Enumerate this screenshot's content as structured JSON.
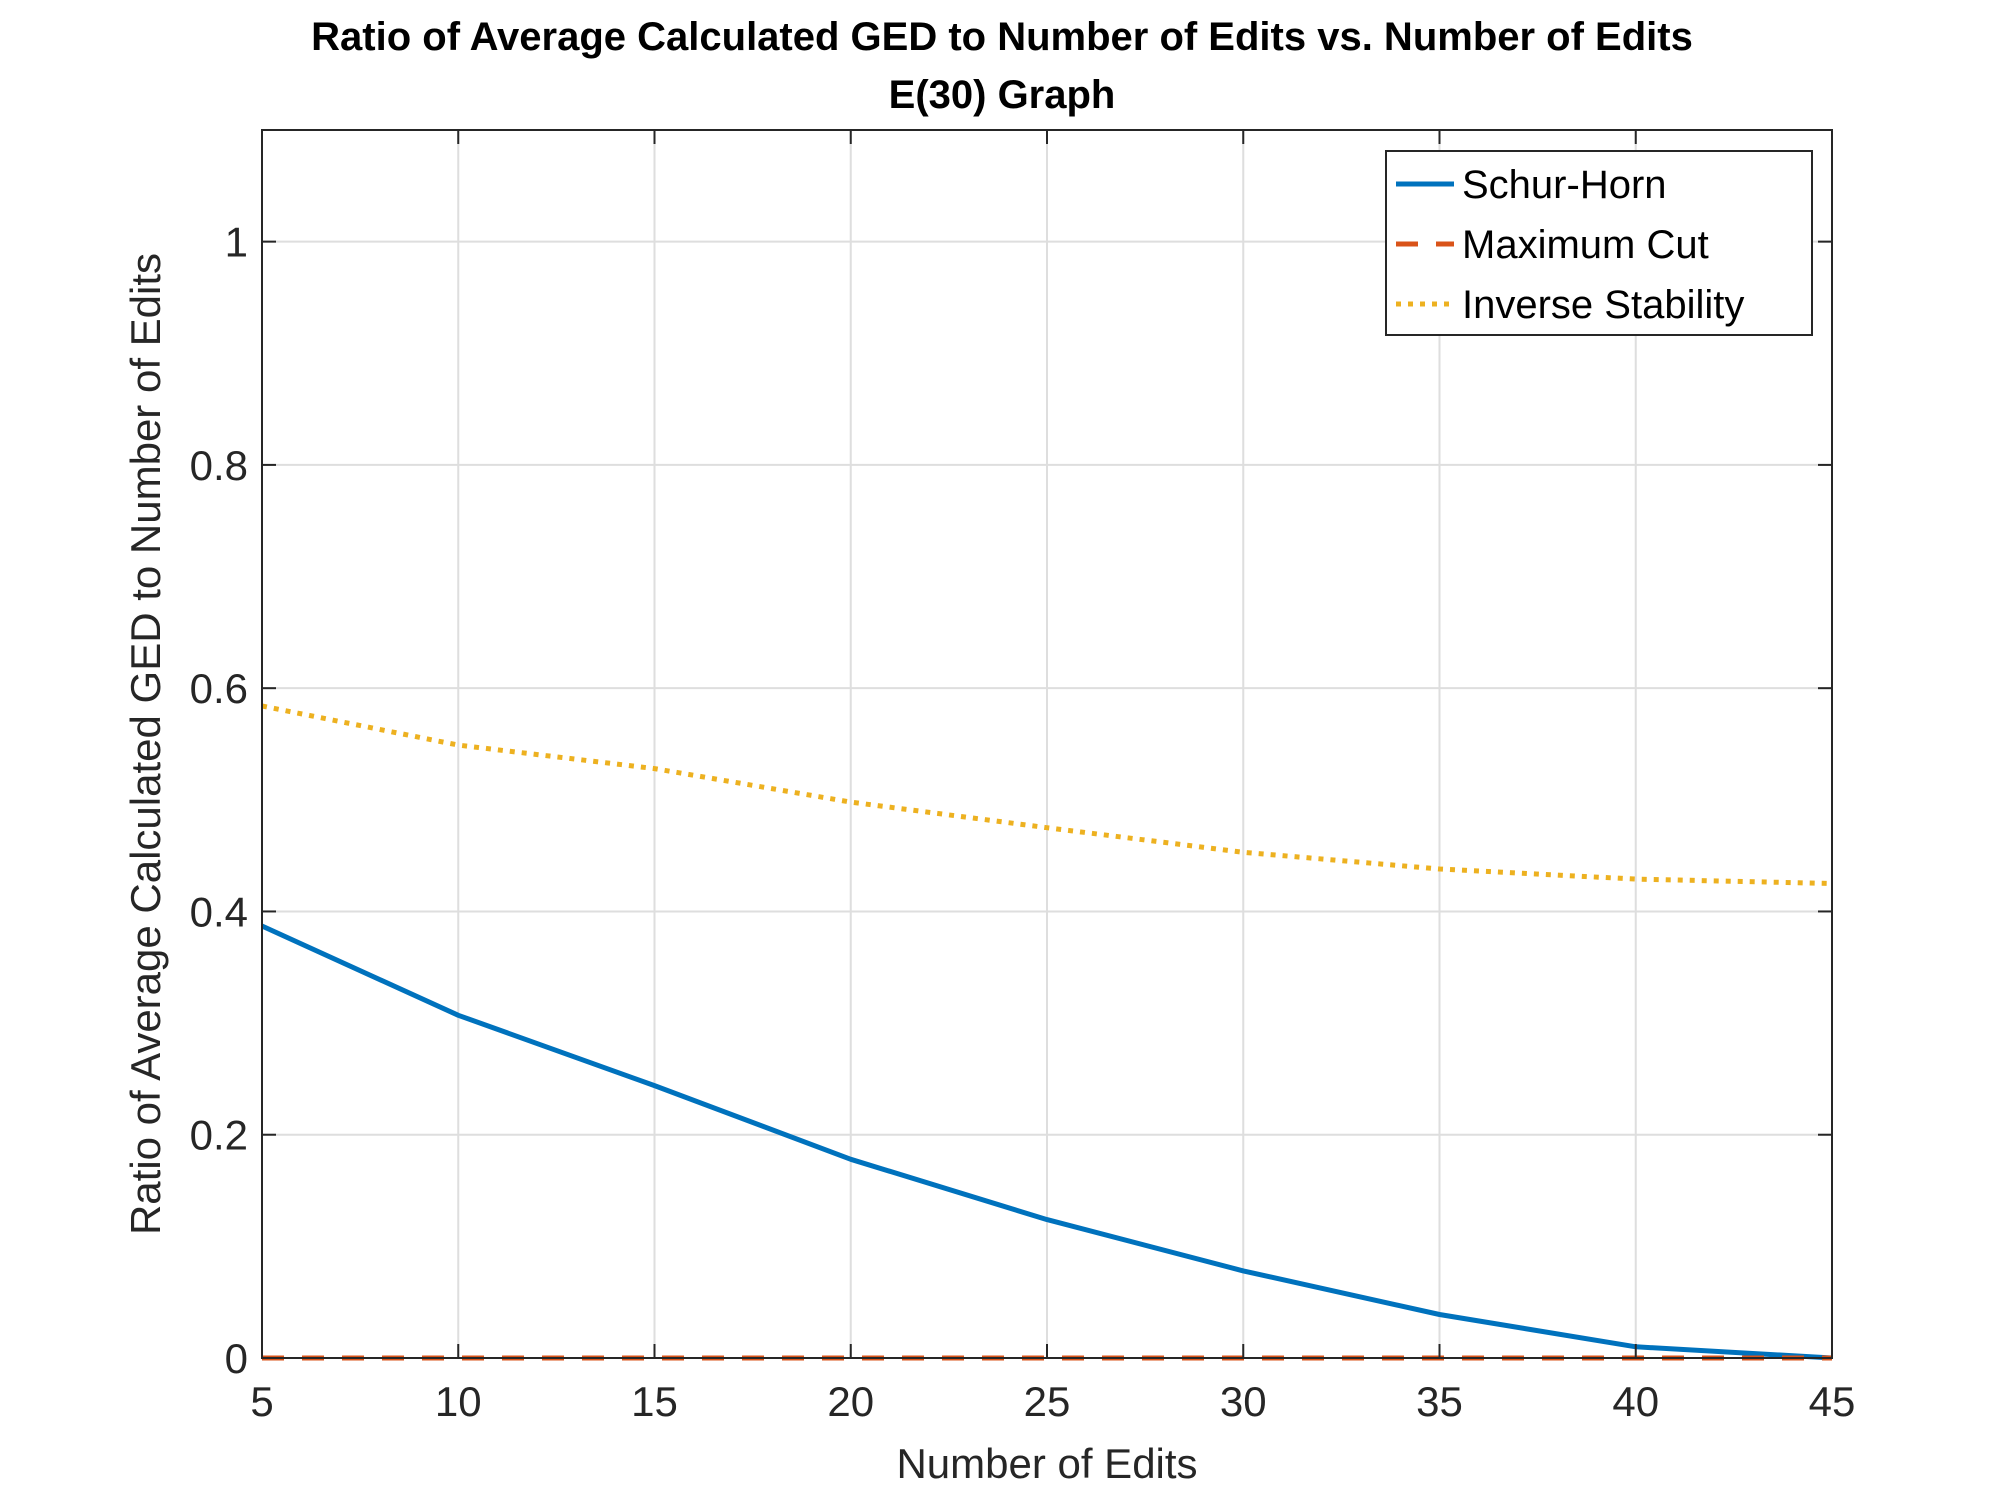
{
  "chart_data": {
    "type": "line",
    "title": "Ratio of Average Calculated GED to Number of Edits vs. Number of Edits",
    "subtitle": "E(30) Graph",
    "xlabel": "Number of Edits",
    "ylabel": "Ratio of Average Calculated GED to Number of Edits",
    "xlim": [
      5,
      45
    ],
    "ylim": [
      0,
      1.1
    ],
    "grid": true,
    "legend_position": "top-right",
    "x": [
      5,
      10,
      15,
      20,
      25,
      30,
      35,
      40,
      45
    ],
    "xticks": [
      5,
      10,
      15,
      20,
      25,
      30,
      35,
      40,
      45
    ],
    "xtick_labels": [
      "5",
      "10",
      "15",
      "20",
      "25",
      "30",
      "35",
      "40",
      "45"
    ],
    "yticks": [
      0,
      0.2,
      0.4,
      0.6,
      0.8,
      1
    ],
    "ytick_labels": [
      "0",
      "0.2",
      "0.4",
      "0.6",
      "0.8",
      "1"
    ],
    "series": [
      {
        "name": "Schur-Horn",
        "color": "#0072BD",
        "style": "solid",
        "values": [
          0.387,
          0.307,
          0.244,
          0.178,
          0.124,
          0.078,
          0.039,
          0.01,
          0.0
        ]
      },
      {
        "name": "Maximum Cut",
        "color": "#D95319",
        "style": "dashed",
        "values": [
          0,
          0,
          0,
          0,
          0,
          0,
          0,
          0,
          0
        ]
      },
      {
        "name": "Inverse Stability",
        "color": "#EDB120",
        "style": "dotted",
        "values": [
          0.584,
          0.549,
          0.528,
          0.498,
          0.475,
          0.453,
          0.438,
          0.429,
          0.425
        ]
      }
    ]
  }
}
